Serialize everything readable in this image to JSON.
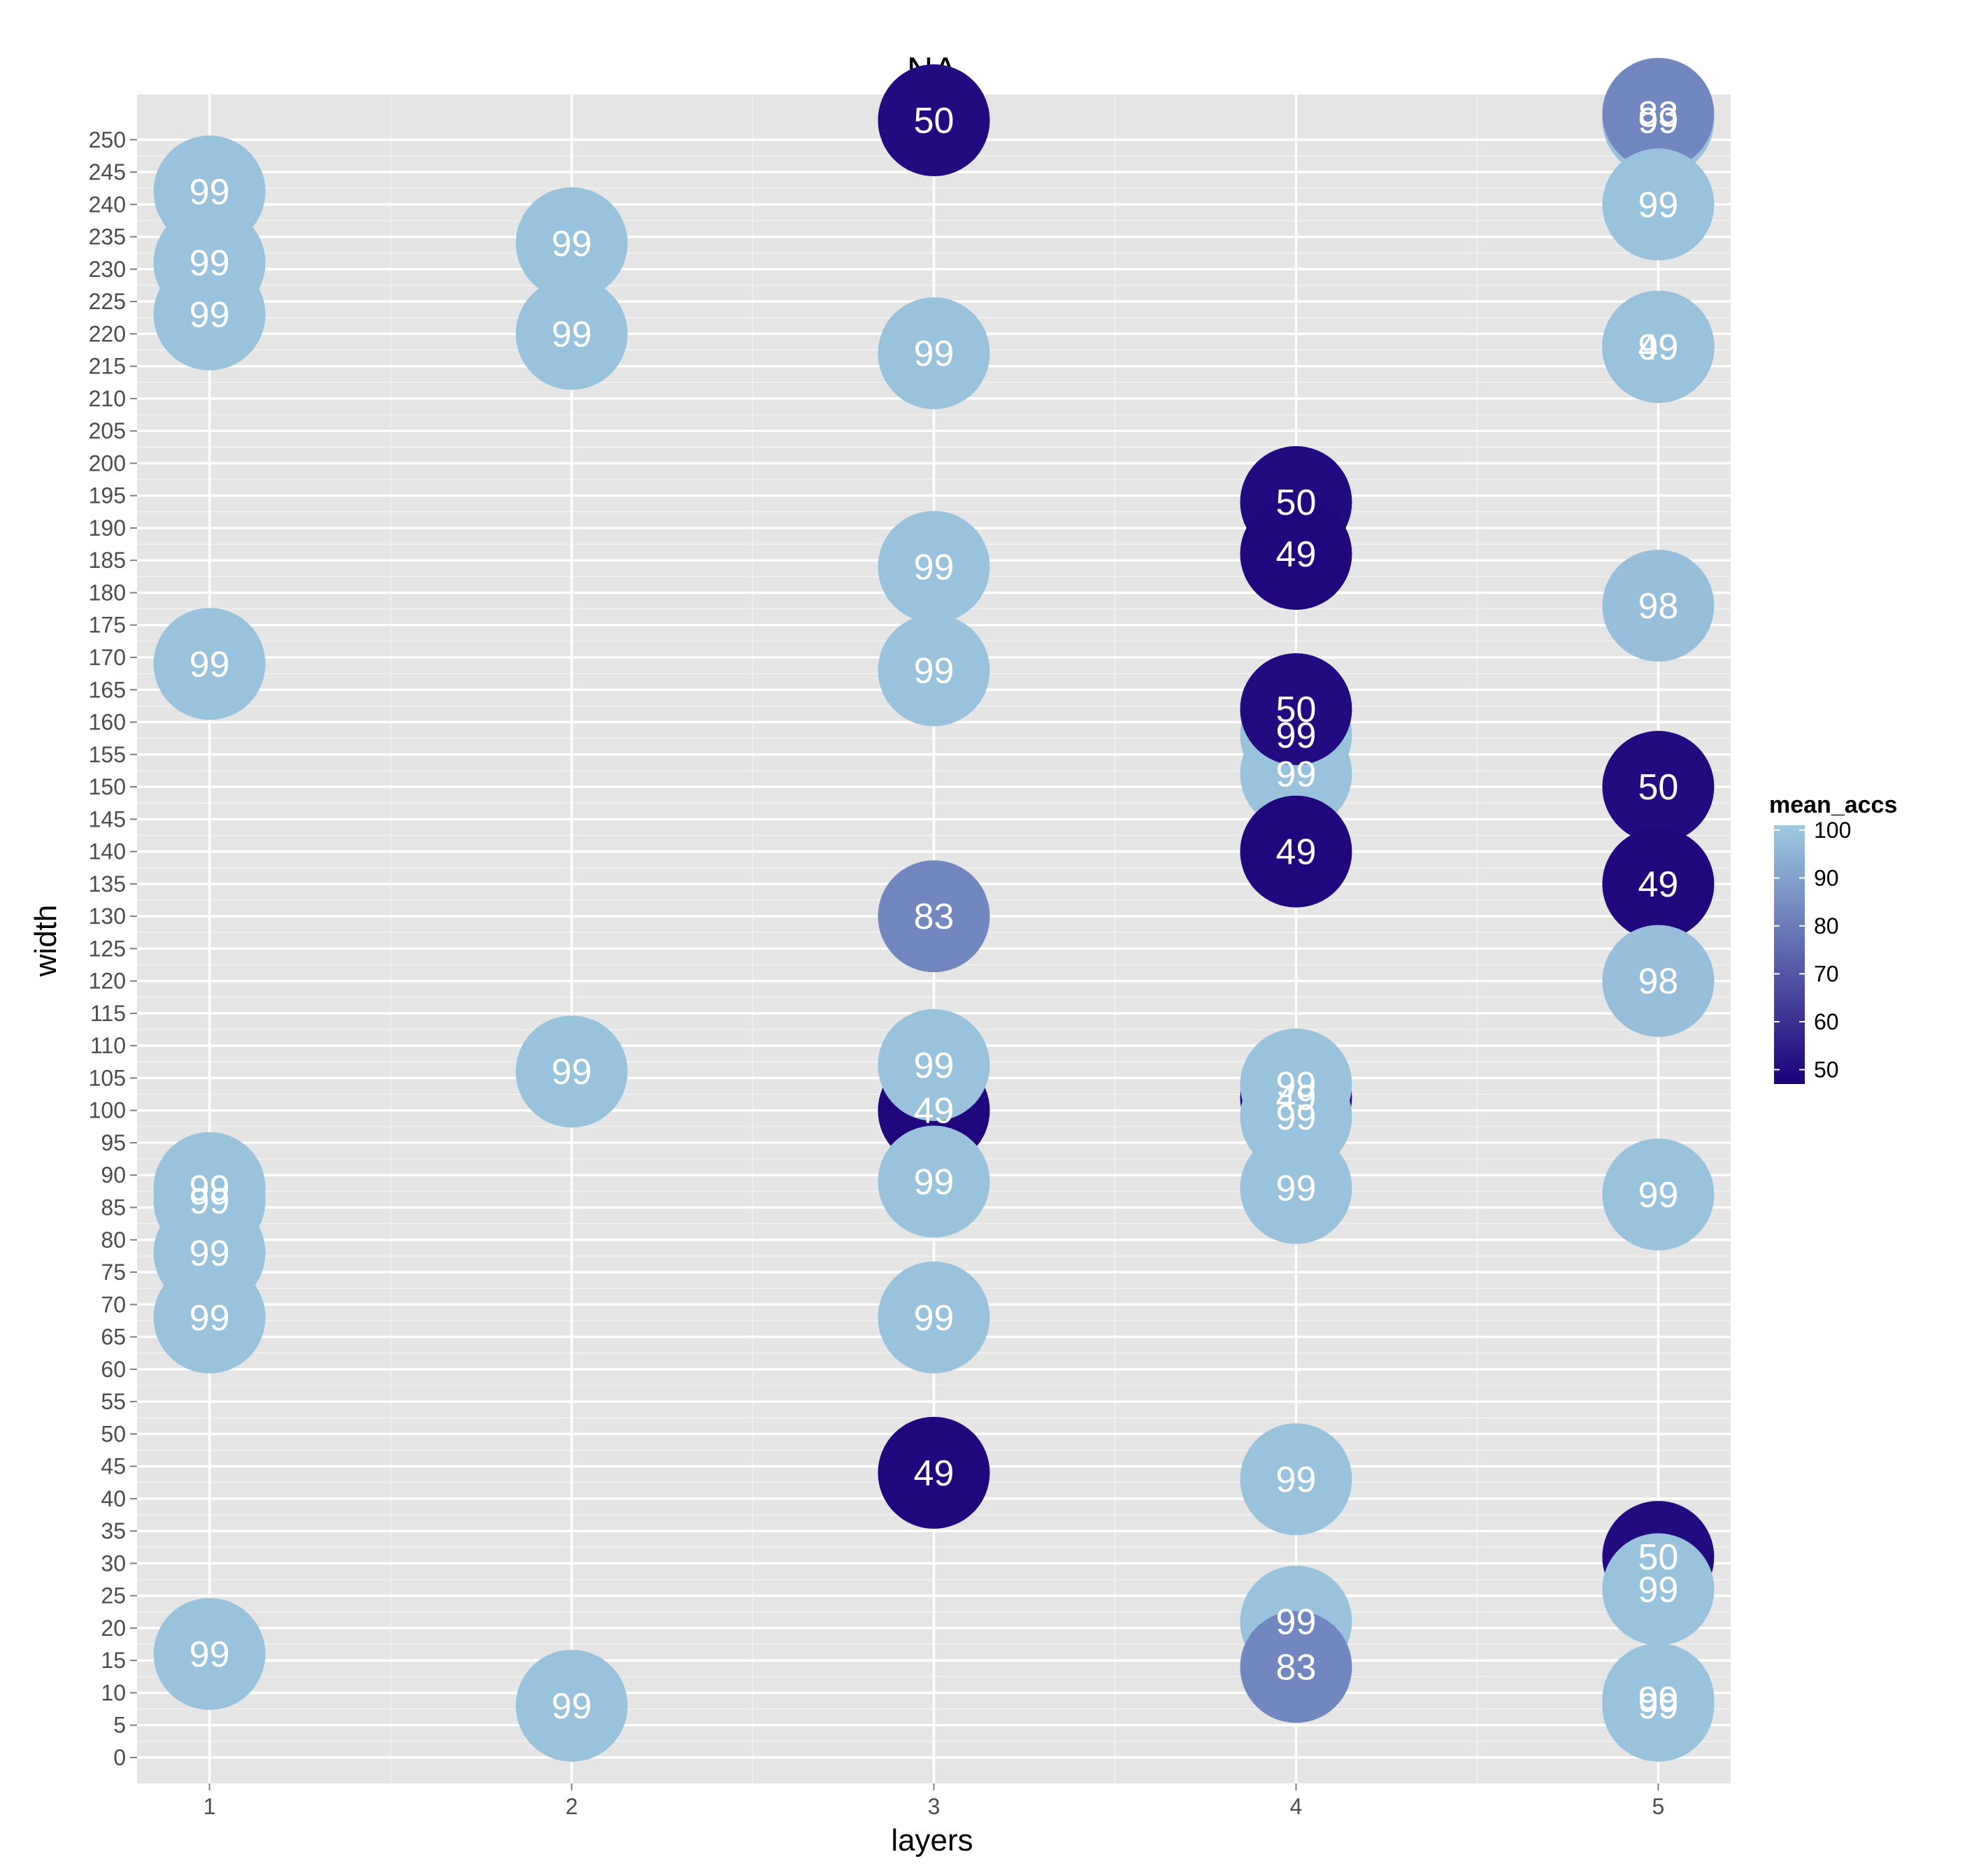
{
  "chart_data": {
    "type": "scatter",
    "title": "NA",
    "xlabel": "layers",
    "ylabel": "width",
    "x_ticks": [
      "1",
      "2",
      "3",
      "4",
      "5"
    ],
    "y_ticks": [
      "0",
      "5",
      "10",
      "15",
      "20",
      "25",
      "30",
      "35",
      "40",
      "45",
      "50",
      "55",
      "60",
      "65",
      "70",
      "75",
      "80",
      "85",
      "90",
      "95",
      "100",
      "105",
      "110",
      "115",
      "120",
      "125",
      "130",
      "135",
      "140",
      "145",
      "150",
      "155",
      "160",
      "165",
      "170",
      "175",
      "180",
      "185",
      "190",
      "195",
      "200",
      "205",
      "210",
      "215",
      "220",
      "225",
      "230",
      "235",
      "240",
      "245",
      "250"
    ],
    "xlim": [
      0.8,
      5.2
    ],
    "ylim": [
      -4,
      257
    ],
    "grid": true,
    "legend": {
      "title": "mean_accs",
      "position": "right",
      "ticks": [
        "100",
        "90",
        "80",
        "70",
        "60",
        "50"
      ],
      "range": [
        47,
        101
      ],
      "low_color": "#1b007a",
      "high_color": "#9ecae1"
    },
    "points": [
      {
        "x": 1,
        "y": 242,
        "label": "99",
        "value": 99
      },
      {
        "x": 1,
        "y": 231,
        "label": "99",
        "value": 99
      },
      {
        "x": 1,
        "y": 223,
        "label": "99",
        "value": 99
      },
      {
        "x": 1,
        "y": 169,
        "label": "99",
        "value": 99
      },
      {
        "x": 1,
        "y": 88,
        "label": "99",
        "value": 99
      },
      {
        "x": 1,
        "y": 86,
        "label": "99",
        "value": 99
      },
      {
        "x": 1,
        "y": 78,
        "label": "99",
        "value": 99
      },
      {
        "x": 1,
        "y": 68,
        "label": "99",
        "value": 99
      },
      {
        "x": 1,
        "y": 16,
        "label": "99",
        "value": 99
      },
      {
        "x": 2,
        "y": 234,
        "label": "99",
        "value": 99
      },
      {
        "x": 2,
        "y": 220,
        "label": "99",
        "value": 99
      },
      {
        "x": 2,
        "y": 106,
        "label": "99",
        "value": 99
      },
      {
        "x": 2,
        "y": 8,
        "label": "99",
        "value": 99
      },
      {
        "x": 3,
        "y": 253,
        "label": "50",
        "value": 50
      },
      {
        "x": 3,
        "y": 217,
        "label": "99",
        "value": 99
      },
      {
        "x": 3,
        "y": 184,
        "label": "99",
        "value": 99
      },
      {
        "x": 3,
        "y": 168,
        "label": "99",
        "value": 99
      },
      {
        "x": 3,
        "y": 130,
        "label": "83",
        "value": 83
      },
      {
        "x": 3,
        "y": 100,
        "label": "49",
        "value": 49
      },
      {
        "x": 3,
        "y": 107,
        "label": "99",
        "value": 99
      },
      {
        "x": 3,
        "y": 89,
        "label": "99",
        "value": 99
      },
      {
        "x": 3,
        "y": 68,
        "label": "99",
        "value": 99
      },
      {
        "x": 3,
        "y": 44,
        "label": "49",
        "value": 49
      },
      {
        "x": 4,
        "y": 194,
        "label": "50",
        "value": 50
      },
      {
        "x": 4,
        "y": 186,
        "label": "49",
        "value": 49
      },
      {
        "x": 4,
        "y": 152,
        "label": "99",
        "value": 99
      },
      {
        "x": 4,
        "y": 158,
        "label": "99",
        "value": 99
      },
      {
        "x": 4,
        "y": 162,
        "label": "50",
        "value": 50
      },
      {
        "x": 4,
        "y": 140,
        "label": "49",
        "value": 49
      },
      {
        "x": 4,
        "y": 102,
        "label": "49",
        "value": 49
      },
      {
        "x": 4,
        "y": 104,
        "label": "99",
        "value": 99
      },
      {
        "x": 4,
        "y": 99,
        "label": "99",
        "value": 99
      },
      {
        "x": 4,
        "y": 88,
        "label": "99",
        "value": 99
      },
      {
        "x": 4,
        "y": 43,
        "label": "99",
        "value": 99
      },
      {
        "x": 4,
        "y": 21,
        "label": "99",
        "value": 99
      },
      {
        "x": 4,
        "y": 14,
        "label": "83",
        "value": 83
      },
      {
        "x": 5,
        "y": 253,
        "label": "99",
        "value": 99
      },
      {
        "x": 5,
        "y": 254,
        "label": "83",
        "value": 83
      },
      {
        "x": 5,
        "y": 240,
        "label": "99",
        "value": 99
      },
      {
        "x": 5,
        "y": 218,
        "label": "49",
        "value": 49
      },
      {
        "x": 5,
        "y": 218,
        "label": "99",
        "value": 99
      },
      {
        "x": 5,
        "y": 178,
        "label": "98",
        "value": 98
      },
      {
        "x": 5,
        "y": 150,
        "label": "50",
        "value": 50
      },
      {
        "x": 5,
        "y": 135,
        "label": "49",
        "value": 49
      },
      {
        "x": 5,
        "y": 120,
        "label": "98",
        "value": 98
      },
      {
        "x": 5,
        "y": 87,
        "label": "99",
        "value": 99
      },
      {
        "x": 5,
        "y": 31,
        "label": "50",
        "value": 50
      },
      {
        "x": 5,
        "y": 26,
        "label": "99",
        "value": 99
      },
      {
        "x": 5,
        "y": 9,
        "label": "99",
        "value": 99
      },
      {
        "x": 5,
        "y": 8,
        "label": "99",
        "value": 99
      }
    ]
  }
}
